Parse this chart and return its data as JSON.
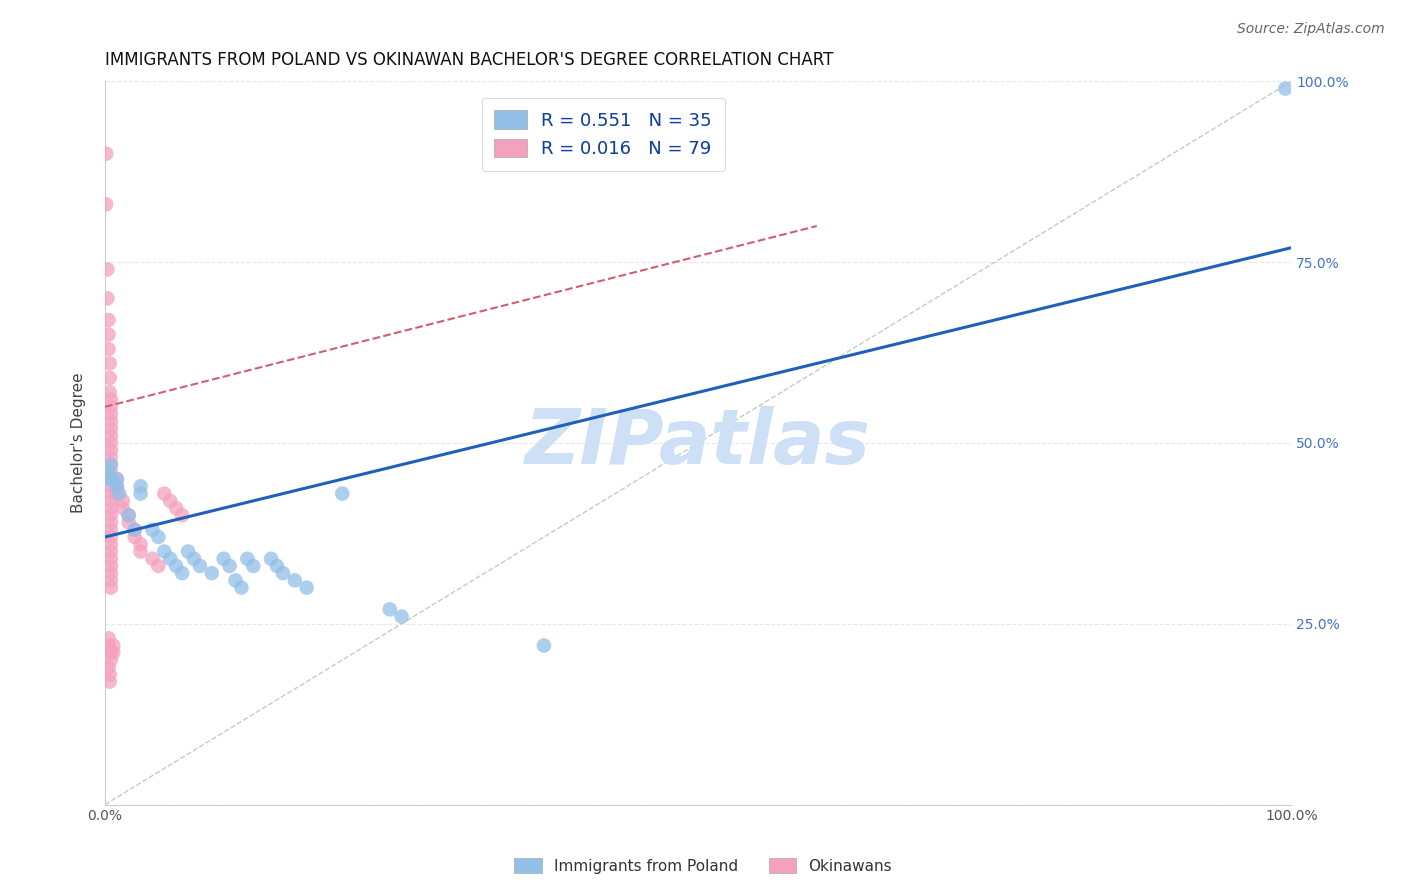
{
  "title": "IMMIGRANTS FROM POLAND VS OKINAWAN BACHELOR'S DEGREE CORRELATION CHART",
  "source": "Source: ZipAtlas.com",
  "ylabel": "Bachelor's Degree",
  "watermark": "ZIPatlas",
  "right_ytick_labels": [
    "",
    "25.0%",
    "50.0%",
    "75.0%",
    "100.0%"
  ],
  "blue_scatter": [
    [
      0.3,
      46
    ],
    [
      0.3,
      45
    ],
    [
      0.5,
      47
    ],
    [
      0.5,
      45
    ],
    [
      1.0,
      45
    ],
    [
      1.0,
      44
    ],
    [
      1.2,
      43
    ],
    [
      2.0,
      40
    ],
    [
      2.5,
      38
    ],
    [
      3.0,
      44
    ],
    [
      3.0,
      43
    ],
    [
      4.0,
      38
    ],
    [
      4.5,
      37
    ],
    [
      5.0,
      35
    ],
    [
      5.5,
      34
    ],
    [
      6.0,
      33
    ],
    [
      6.5,
      32
    ],
    [
      7.0,
      35
    ],
    [
      7.5,
      34
    ],
    [
      8.0,
      33
    ],
    [
      9.0,
      32
    ],
    [
      10.0,
      34
    ],
    [
      10.5,
      33
    ],
    [
      11.0,
      31
    ],
    [
      11.5,
      30
    ],
    [
      12.0,
      34
    ],
    [
      12.5,
      33
    ],
    [
      14.0,
      34
    ],
    [
      14.5,
      33
    ],
    [
      15.0,
      32
    ],
    [
      16.0,
      31
    ],
    [
      17.0,
      30
    ],
    [
      20.0,
      43
    ],
    [
      24.0,
      27
    ],
    [
      25.0,
      26
    ],
    [
      37.0,
      22
    ],
    [
      99.5,
      99
    ]
  ],
  "pink_scatter": [
    [
      0.1,
      90
    ],
    [
      0.1,
      83
    ],
    [
      0.2,
      74
    ],
    [
      0.2,
      70
    ],
    [
      0.3,
      67
    ],
    [
      0.3,
      65
    ],
    [
      0.3,
      63
    ],
    [
      0.4,
      61
    ],
    [
      0.4,
      59
    ],
    [
      0.4,
      57
    ],
    [
      0.5,
      56
    ],
    [
      0.5,
      55
    ],
    [
      0.5,
      54
    ],
    [
      0.5,
      53
    ],
    [
      0.5,
      52
    ],
    [
      0.5,
      51
    ],
    [
      0.5,
      50
    ],
    [
      0.5,
      49
    ],
    [
      0.5,
      48
    ],
    [
      0.5,
      47
    ],
    [
      0.5,
      46
    ],
    [
      0.5,
      45
    ],
    [
      0.5,
      44
    ],
    [
      0.5,
      43
    ],
    [
      0.5,
      42
    ],
    [
      0.5,
      41
    ],
    [
      0.5,
      40
    ],
    [
      0.5,
      39
    ],
    [
      0.5,
      38
    ],
    [
      0.5,
      37
    ],
    [
      0.5,
      36
    ],
    [
      0.5,
      35
    ],
    [
      0.5,
      34
    ],
    [
      0.5,
      33
    ],
    [
      0.5,
      32
    ],
    [
      0.5,
      31
    ],
    [
      0.5,
      30
    ],
    [
      0.5,
      21
    ],
    [
      0.5,
      20
    ],
    [
      0.7,
      22
    ],
    [
      0.7,
      21
    ],
    [
      1.0,
      45
    ],
    [
      1.0,
      44
    ],
    [
      1.0,
      43
    ],
    [
      1.5,
      42
    ],
    [
      1.5,
      41
    ],
    [
      2.0,
      40
    ],
    [
      2.0,
      39
    ],
    [
      2.5,
      38
    ],
    [
      2.5,
      37
    ],
    [
      3.0,
      36
    ],
    [
      3.0,
      35
    ],
    [
      4.0,
      34
    ],
    [
      4.5,
      33
    ],
    [
      5.0,
      43
    ],
    [
      5.5,
      42
    ],
    [
      6.0,
      41
    ],
    [
      6.5,
      40
    ],
    [
      0.3,
      23
    ],
    [
      0.3,
      22
    ],
    [
      0.3,
      19
    ],
    [
      0.4,
      18
    ],
    [
      0.4,
      17
    ]
  ],
  "blue_line_x": [
    0,
    100
  ],
  "blue_line_y": [
    37,
    77
  ],
  "pink_line_x": [
    0,
    60
  ],
  "pink_line_y": [
    55,
    80
  ],
  "diag_line_x": [
    0,
    100
  ],
  "diag_line_y": [
    0,
    100
  ],
  "xlim": [
    0,
    100
  ],
  "ylim": [
    0,
    100
  ],
  "blue_color": "#92c0e8",
  "pink_color": "#f4a0be",
  "blue_line_color": "#2060b8",
  "pink_line_color": "#d06070",
  "diag_line_color": "#c8c8c8",
  "grid_color": "#e8e8e8",
  "title_fontsize": 12,
  "source_fontsize": 10,
  "watermark_color": "#cde0f5",
  "watermark_fontsize": 55
}
